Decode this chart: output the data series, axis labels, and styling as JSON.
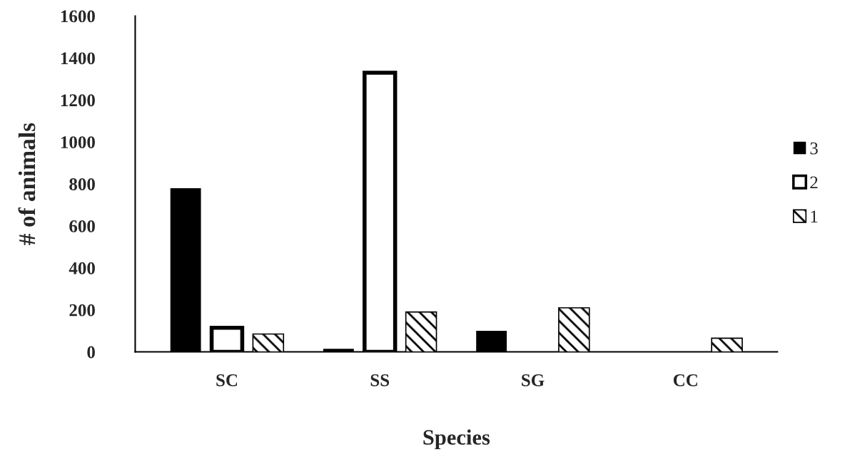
{
  "chart_data": {
    "type": "bar",
    "xlabel": "Species",
    "ylabel": "# of animals",
    "categories": [
      "SC",
      "SS",
      "SG",
      "CC"
    ],
    "series": [
      {
        "name": "3",
        "color": "#000000",
        "values": [
          780,
          15,
          100,
          0
        ]
      },
      {
        "name": "2",
        "color": "#ffffff",
        "values": [
          115,
          1330,
          0,
          0
        ]
      },
      {
        "name": "1",
        "color": "#000000",
        "values": [
          85,
          190,
          210,
          65
        ]
      }
    ],
    "ylim": [
      0,
      1600
    ],
    "yticks": [
      0,
      200,
      400,
      600,
      800,
      1000,
      1200,
      1400,
      1600
    ],
    "grid": false,
    "legend": "right"
  }
}
